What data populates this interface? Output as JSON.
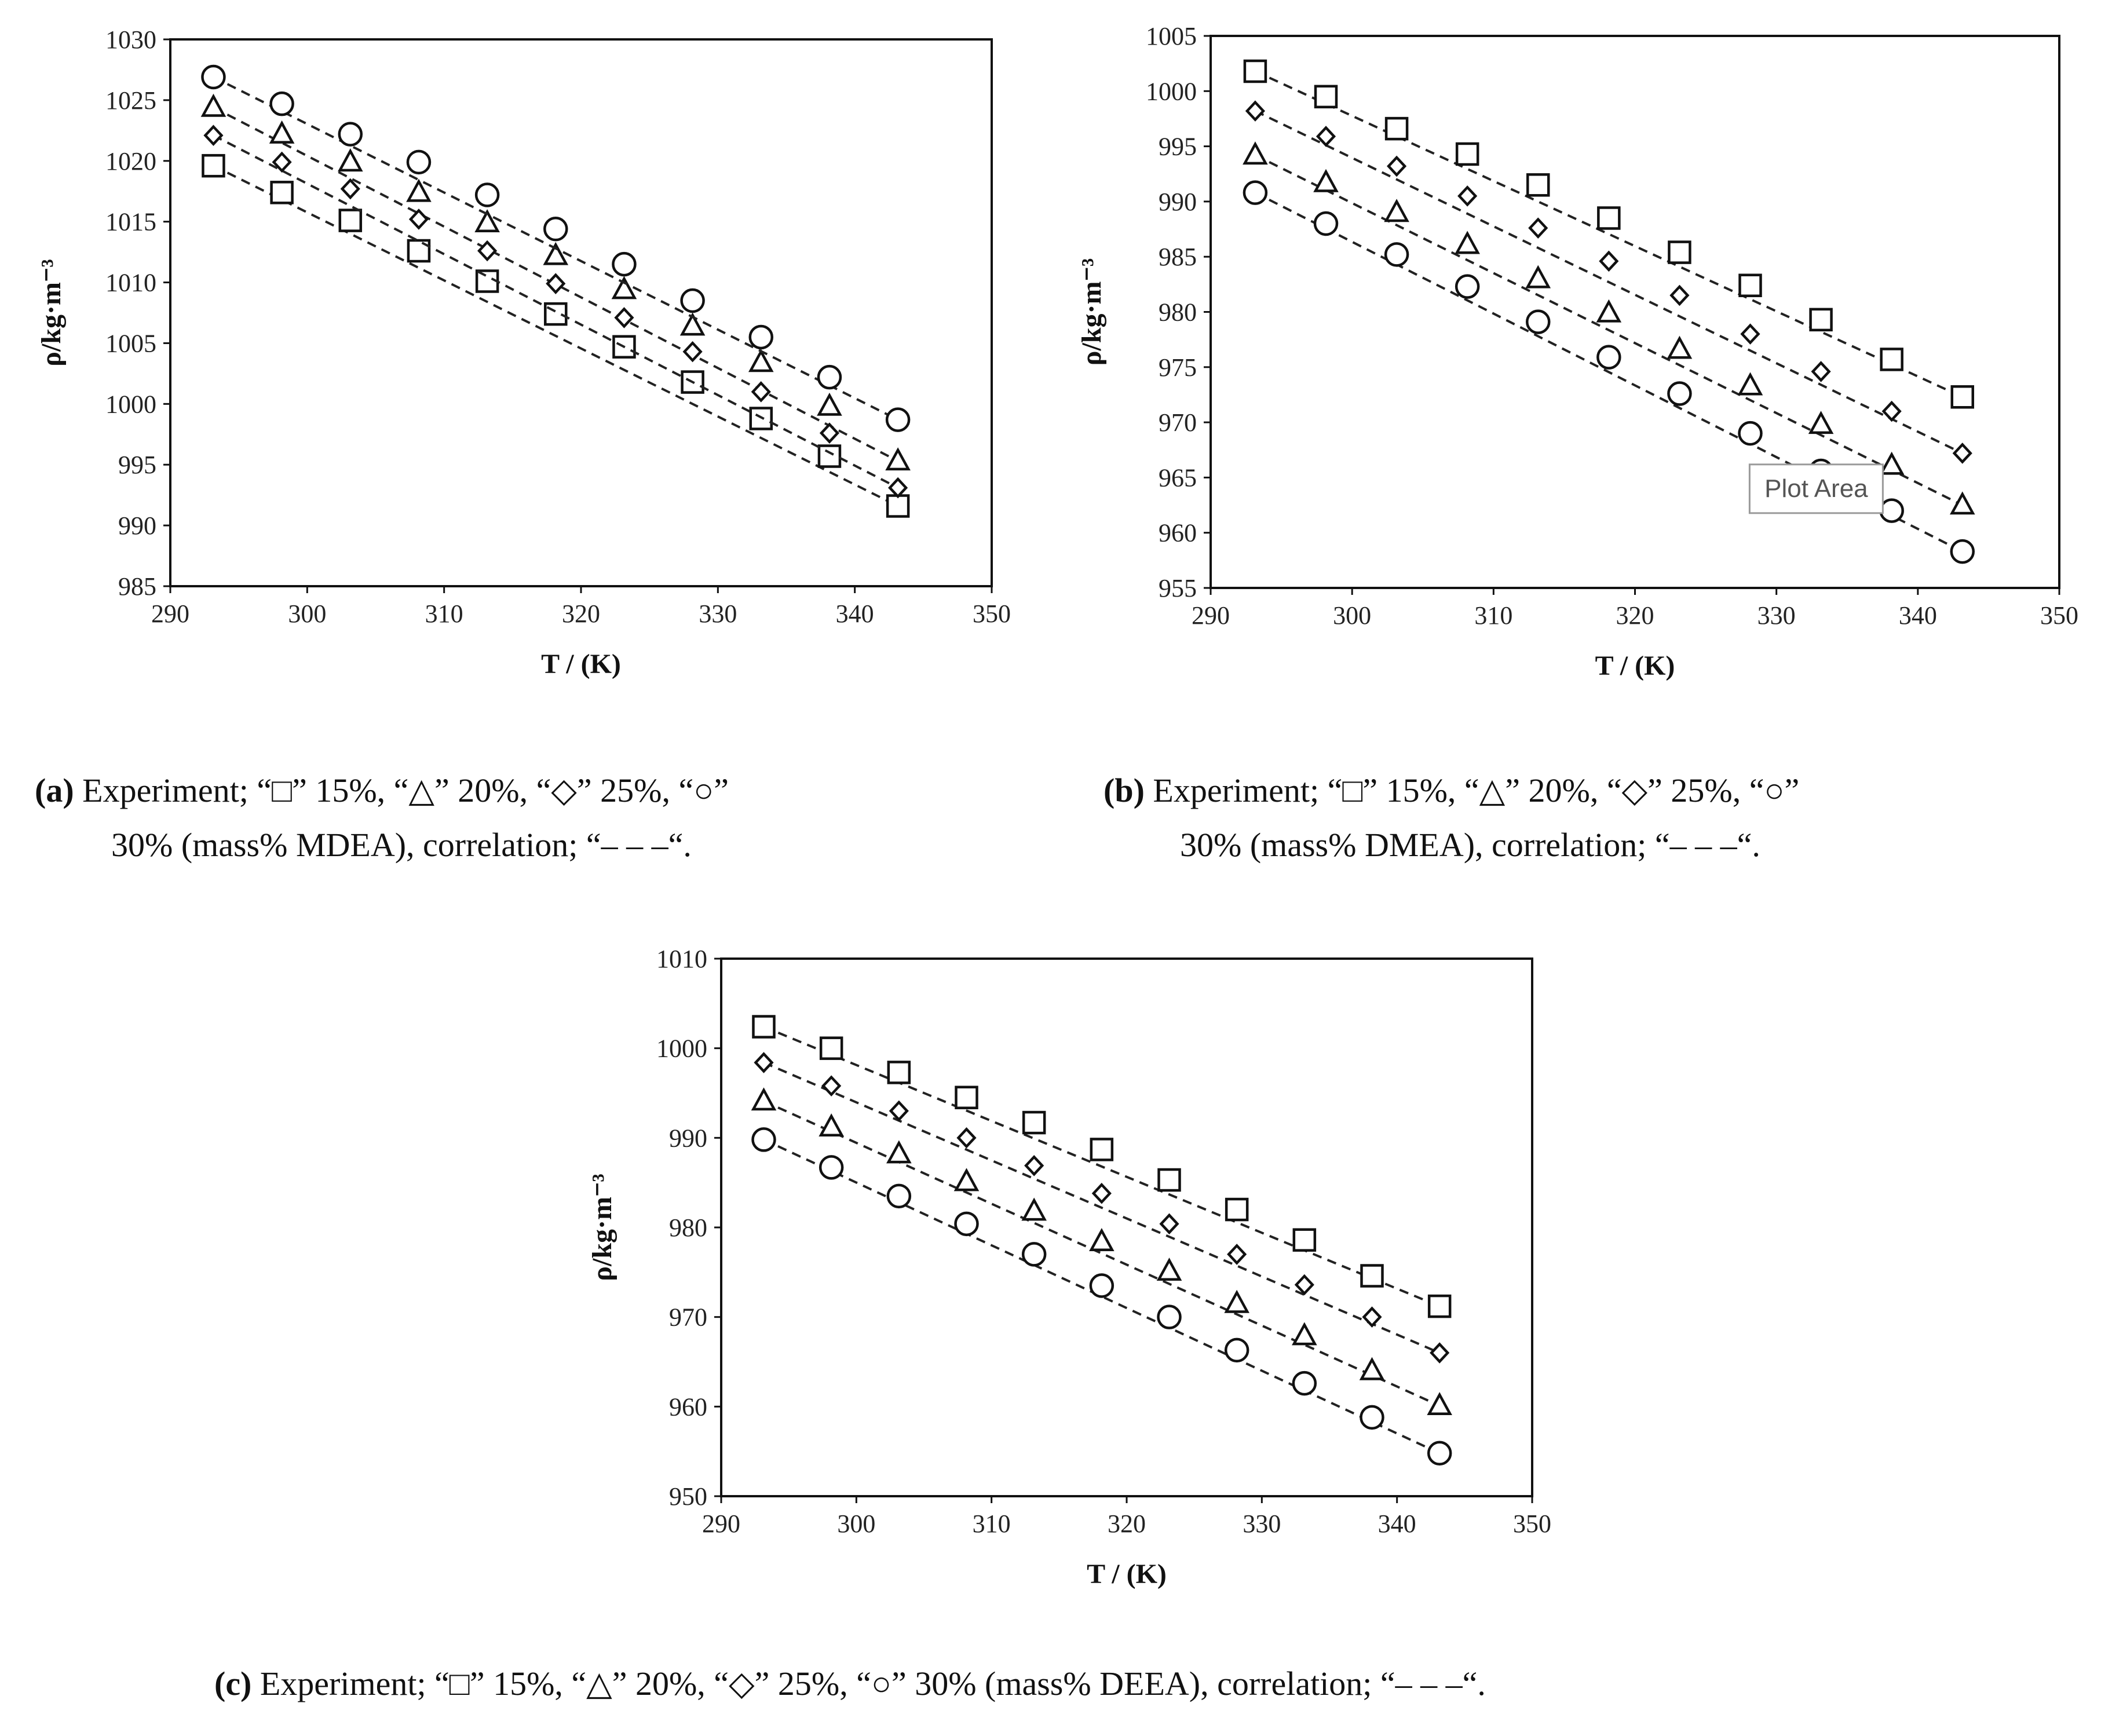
{
  "charts": [
    {
      "id": "a",
      "type": "scatter",
      "title": "",
      "xlabel": "T / (K)",
      "ylabel": "ρ/kg·m⁻³",
      "xlim": [
        290,
        350
      ],
      "ylim": [
        985,
        1030
      ],
      "xticks": [
        290,
        300,
        310,
        320,
        330,
        340,
        350
      ],
      "yticks": [
        985,
        990,
        995,
        1000,
        1005,
        1010,
        1015,
        1020,
        1025,
        1030
      ],
      "x": [
        293.15,
        298.15,
        303.15,
        308.15,
        313.15,
        318.15,
        323.15,
        328.15,
        333.15,
        338.15,
        343.15
      ],
      "series": [
        {
          "name": "15%",
          "marker": "square",
          "values": [
            1019.6,
            1017.4,
            1015.1,
            1012.6,
            1010.1,
            1007.4,
            1004.7,
            1001.8,
            998.8,
            995.7,
            991.6
          ]
        },
        {
          "name": "20%",
          "marker": "triangle",
          "values": [
            1024.4,
            1022.2,
            1019.9,
            1017.4,
            1014.9,
            1012.2,
            1009.4,
            1006.4,
            1003.4,
            999.8,
            995.3
          ]
        },
        {
          "name": "25%",
          "marker": "diamond",
          "values": [
            1022.1,
            1019.9,
            1017.7,
            1015.2,
            1012.6,
            1009.9,
            1007.1,
            1004.3,
            1001.0,
            997.6,
            993.1
          ]
        },
        {
          "name": "30%",
          "marker": "circle",
          "values": [
            1026.9,
            1024.7,
            1022.2,
            1019.9,
            1017.2,
            1014.4,
            1011.5,
            1008.5,
            1005.5,
            1002.2,
            998.7
          ]
        }
      ]
    },
    {
      "id": "b",
      "type": "scatter",
      "title": "",
      "xlabel": "T / (K)",
      "ylabel": "ρ/kg·m⁻³",
      "xlim": [
        290,
        350
      ],
      "ylim": [
        955,
        1005
      ],
      "xticks": [
        290,
        300,
        310,
        320,
        330,
        340,
        350
      ],
      "yticks": [
        955,
        960,
        965,
        970,
        975,
        980,
        985,
        990,
        995,
        1000,
        1005
      ],
      "x": [
        293.15,
        298.15,
        303.15,
        308.15,
        313.15,
        318.15,
        323.15,
        328.15,
        333.15,
        338.15,
        343.15
      ],
      "series": [
        {
          "name": "15%",
          "marker": "square",
          "values": [
            1001.8,
            999.5,
            996.6,
            994.3,
            991.5,
            988.5,
            985.4,
            982.4,
            979.3,
            975.7,
            972.3
          ]
        },
        {
          "name": "20%",
          "marker": "triangle",
          "values": [
            994.2,
            991.7,
            989.0,
            986.1,
            983.0,
            979.9,
            976.6,
            973.3,
            969.8,
            966.1,
            962.5
          ]
        },
        {
          "name": "25%",
          "marker": "diamond",
          "values": [
            998.2,
            995.9,
            993.2,
            990.5,
            987.6,
            984.6,
            981.5,
            978.0,
            974.6,
            971.0,
            967.2
          ]
        },
        {
          "name": "30%",
          "marker": "circle",
          "values": [
            990.8,
            988.0,
            985.2,
            982.3,
            979.1,
            975.9,
            972.6,
            969.0,
            965.6,
            962.0,
            958.3
          ]
        }
      ],
      "tooltip": "Plot Area"
    },
    {
      "id": "c",
      "type": "scatter",
      "title": "",
      "xlabel": "T / (K)",
      "ylabel": "ρ/kg·m⁻³",
      "xlim": [
        290,
        350
      ],
      "ylim": [
        950,
        1010
      ],
      "xticks": [
        290,
        300,
        310,
        320,
        330,
        340,
        350
      ],
      "yticks": [
        950,
        960,
        970,
        980,
        990,
        1000,
        1010
      ],
      "x": [
        293.15,
        298.15,
        303.15,
        308.15,
        313.15,
        318.15,
        323.15,
        328.15,
        333.15,
        338.15,
        343.15
      ],
      "series": [
        {
          "name": "15%",
          "marker": "square",
          "values": [
            1002.4,
            1000.0,
            997.3,
            994.5,
            991.7,
            988.7,
            985.3,
            982.0,
            978.6,
            974.6,
            971.2
          ]
        },
        {
          "name": "20%",
          "marker": "triangle",
          "values": [
            994.1,
            991.2,
            988.2,
            985.1,
            981.8,
            978.4,
            975.1,
            971.5,
            967.9,
            964.0,
            960.1
          ]
        },
        {
          "name": "25%",
          "marker": "diamond",
          "values": [
            998.4,
            995.8,
            993.0,
            990.0,
            986.9,
            983.8,
            980.4,
            977.0,
            973.6,
            970.0,
            966.0
          ]
        },
        {
          "name": "30%",
          "marker": "circle",
          "values": [
            989.8,
            986.7,
            983.5,
            980.4,
            977.0,
            973.5,
            970.0,
            966.3,
            962.6,
            958.8,
            954.8
          ]
        }
      ]
    }
  ],
  "captions": {
    "a": {
      "tag": "(a)",
      "line1": "Experiment; “□” 15%, “△” 20%, “◇” 25%, “○”",
      "line2": "30% (mass% MDEA), correlation; “‒ ‒ ‒“."
    },
    "b": {
      "tag": "(b)",
      "line1": "Experiment; “□” 15%, “△” 20%, “◇” 25%, “○”",
      "line2": "30% (mass% DMEA), correlation; “‒ ‒ ‒“."
    },
    "c": {
      "tag": "(c)",
      "line1": "Experiment; “□” 15%, “△” 20%, “◇” 25%, “○” 30% (mass% DEEA), correlation; “‒ ‒ ‒“."
    }
  },
  "chart_data": [
    {
      "type": "scatter",
      "title": "(a) MDEA",
      "xlabel": "T / (K)",
      "ylabel": "ρ/kg·m⁻³",
      "xlim": [
        290,
        350
      ],
      "ylim": [
        985,
        1030
      ],
      "x": [
        293.15,
        298.15,
        303.15,
        308.15,
        313.15,
        318.15,
        323.15,
        328.15,
        333.15,
        338.15,
        343.15
      ],
      "series": [
        {
          "name": "15%",
          "values": [
            1019.6,
            1017.4,
            1015.1,
            1012.6,
            1010.1,
            1007.4,
            1004.7,
            1001.8,
            998.8,
            995.7,
            991.6
          ]
        },
        {
          "name": "20%",
          "values": [
            1024.4,
            1022.2,
            1019.9,
            1017.4,
            1014.9,
            1012.2,
            1009.4,
            1006.4,
            1003.4,
            999.8,
            995.3
          ]
        },
        {
          "name": "25%",
          "values": [
            1022.1,
            1019.9,
            1017.7,
            1015.2,
            1012.6,
            1009.9,
            1007.1,
            1004.3,
            1001.0,
            997.6,
            993.1
          ]
        },
        {
          "name": "30%",
          "values": [
            1026.9,
            1024.7,
            1022.2,
            1019.9,
            1017.2,
            1014.4,
            1011.5,
            1008.5,
            1005.5,
            1002.2,
            998.7
          ]
        }
      ]
    },
    {
      "type": "scatter",
      "title": "(b) DMEA",
      "xlabel": "T / (K)",
      "ylabel": "ρ/kg·m⁻³",
      "xlim": [
        290,
        350
      ],
      "ylim": [
        955,
        1005
      ],
      "x": [
        293.15,
        298.15,
        303.15,
        308.15,
        313.15,
        318.15,
        323.15,
        328.15,
        333.15,
        338.15,
        343.15
      ],
      "series": [
        {
          "name": "15%",
          "values": [
            1001.8,
            999.5,
            996.6,
            994.3,
            991.5,
            988.5,
            985.4,
            982.4,
            979.3,
            975.7,
            972.3
          ]
        },
        {
          "name": "20%",
          "values": [
            994.2,
            991.7,
            989.0,
            986.1,
            983.0,
            979.9,
            976.6,
            973.3,
            969.8,
            966.1,
            962.5
          ]
        },
        {
          "name": "25%",
          "values": [
            998.2,
            995.9,
            993.2,
            990.5,
            987.6,
            984.6,
            981.5,
            978.0,
            974.6,
            971.0,
            967.2
          ]
        },
        {
          "name": "30%",
          "values": [
            990.8,
            988.0,
            985.2,
            982.3,
            979.1,
            975.9,
            972.6,
            969.0,
            965.6,
            962.0,
            958.3
          ]
        }
      ]
    },
    {
      "type": "scatter",
      "title": "(c) DEEA",
      "xlabel": "T / (K)",
      "ylabel": "ρ/kg·m⁻³",
      "xlim": [
        290,
        350
      ],
      "ylim": [
        950,
        1010
      ],
      "x": [
        293.15,
        298.15,
        303.15,
        308.15,
        313.15,
        318.15,
        323.15,
        328.15,
        333.15,
        338.15,
        343.15
      ],
      "series": [
        {
          "name": "15%",
          "values": [
            1002.4,
            1000.0,
            997.3,
            994.5,
            991.7,
            988.7,
            985.3,
            982.0,
            978.6,
            974.6,
            971.2
          ]
        },
        {
          "name": "20%",
          "values": [
            994.1,
            991.2,
            988.2,
            985.1,
            981.8,
            978.4,
            975.1,
            971.5,
            967.9,
            964.0,
            960.1
          ]
        },
        {
          "name": "25%",
          "values": [
            998.4,
            995.8,
            993.0,
            990.0,
            986.9,
            983.8,
            980.4,
            977.0,
            973.6,
            970.0,
            966.0
          ]
        },
        {
          "name": "30%",
          "values": [
            989.8,
            986.7,
            983.5,
            980.4,
            977.0,
            973.5,
            970.0,
            966.3,
            962.6,
            958.8,
            954.8
          ]
        }
      ]
    }
  ]
}
